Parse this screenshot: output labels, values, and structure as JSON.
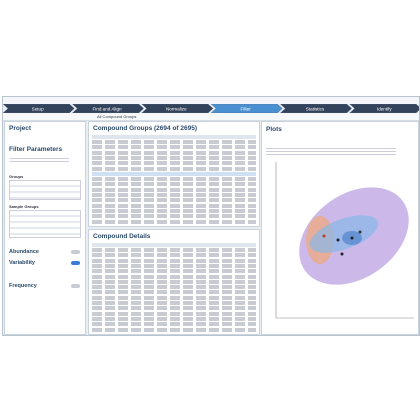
{
  "tabs": [
    "Setup",
    "Find and Align",
    "Normalize",
    "Filter",
    "Statistics",
    "Identify"
  ],
  "active_tab": 3,
  "left": {
    "title": "Project",
    "filter_title": "Filter Parameters",
    "groups": "Groups",
    "sample_groups": "Sample Groups",
    "sections": [
      "Abundance",
      "Variability",
      "Frequency"
    ]
  },
  "toolbar": "All Compound Groups",
  "compound_groups": "Compound Groups (2694 of 2695)",
  "compound_details": "Compound Details",
  "plots": "Plots"
}
